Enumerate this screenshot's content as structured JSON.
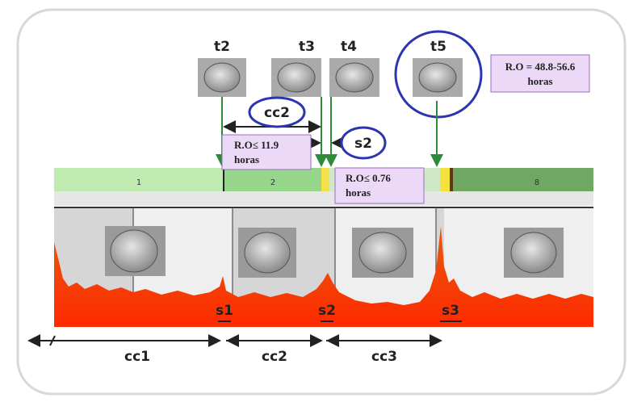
{
  "markers": [
    "t2",
    "t3",
    "t4",
    "t5"
  ],
  "circled": {
    "cycle": "cc2",
    "synchrony": "s2"
  },
  "notes": [
    {
      "range": "R.O≤ 11.9",
      "unit": "horas"
    },
    {
      "range": "R.O≤ 0.76",
      "unit": "horas"
    },
    {
      "range": "R.O = 48.8-56.6",
      "unit": "horas"
    }
  ],
  "stages": [
    "1",
    "2",
    "8"
  ],
  "peaks": [
    "s1",
    "s2",
    "s3"
  ],
  "cycles": [
    "cc1",
    "cc2",
    "cc3"
  ]
}
